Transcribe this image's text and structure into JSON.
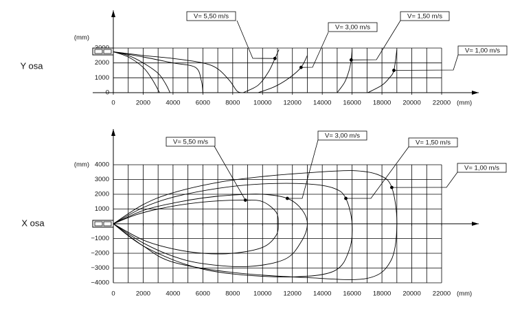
{
  "chart_data": [
    {
      "type": "line",
      "title": "Y osa",
      "x_label": "(mm)",
      "y_label": "(mm)",
      "xlim": [
        0,
        22000
      ],
      "xticks": [
        0,
        2000,
        4000,
        6000,
        8000,
        10000,
        12000,
        14000,
        16000,
        18000,
        20000,
        22000
      ],
      "xgrid": [
        0,
        1000,
        2000,
        3000,
        4000,
        5000,
        6000,
        7000,
        8000,
        9000,
        10000,
        11000,
        12000,
        13000,
        14000,
        15000,
        16000,
        17000,
        18000,
        19000,
        20000,
        21000,
        22000
      ],
      "ylim": [
        0,
        3000
      ],
      "yticks": [
        0,
        1000,
        2000,
        3000
      ],
      "grid": true,
      "series": [
        {
          "color": "#000000",
          "x": [
            0,
            1000,
            2000,
            2600,
            3100
          ],
          "values": [
            2750,
            2400,
            1700,
            900,
            0
          ]
        },
        {
          "color": "#000000",
          "x": [
            0,
            1000,
            2000,
            3000,
            3500,
            3800
          ],
          "values": [
            2750,
            2500,
            2000,
            1300,
            600,
            0
          ]
        },
        {
          "color": "#000000",
          "x": [
            0,
            2000,
            4000,
            5500,
            5900,
            6000
          ],
          "values": [
            2750,
            2400,
            2000,
            1700,
            800,
            0
          ]
        },
        {
          "color": "#000000",
          "x": [
            0,
            2000,
            4000,
            6000,
            7000,
            7800,
            8300,
            8700
          ],
          "values": [
            2750,
            2500,
            2300,
            2000,
            1600,
            800,
            100,
            0
          ]
        },
        {
          "color": "#000000",
          "x": [
            8700,
            9700,
            10400,
            10830,
            11100
          ],
          "values": [
            0,
            500,
            1400,
            2300,
            2900
          ]
        },
        {
          "color": "#000000",
          "x": [
            9700,
            10800,
            11800,
            12580,
            13000
          ],
          "values": [
            0,
            400,
            1000,
            1700,
            2500
          ]
        },
        {
          "color": "#000000",
          "x": [
            15000,
            15500,
            15800,
            15940,
            16000
          ],
          "values": [
            0,
            700,
            1500,
            2200,
            2900
          ]
        },
        {
          "color": "#000000",
          "x": [
            17050,
            18000,
            18500,
            18800,
            19000
          ],
          "values": [
            0,
            500,
            1000,
            1500,
            2900
          ]
        }
      ],
      "annotations": [
        {
          "text": "V= 5,50 m/s",
          "x": 10830,
          "y": 2300
        },
        {
          "text": "V= 3,00 m/s",
          "x": 12580,
          "y": 1700
        },
        {
          "text": "V= 1,50 m/s",
          "x": 15940,
          "y": 2200
        },
        {
          "text": "V= 1,00 m/s",
          "x": 18800,
          "y": 1500
        }
      ]
    },
    {
      "type": "line",
      "title": "X osa",
      "x_label": "(mm)",
      "y_label": "(mm)",
      "xlim": [
        0,
        22000
      ],
      "xticks": [
        0,
        2000,
        4000,
        6000,
        8000,
        10000,
        12000,
        14000,
        16000,
        18000,
        20000,
        22000
      ],
      "xgrid": [
        0,
        1000,
        2000,
        3000,
        4000,
        5000,
        6000,
        7000,
        8000,
        9000,
        10000,
        11000,
        12000,
        13000,
        14000,
        15000,
        16000,
        17000,
        18000,
        19000,
        20000,
        21000,
        22000
      ],
      "ylim": [
        -4000,
        4000
      ],
      "yticks": [
        {
          "value": -4000,
          "label": "−4000"
        },
        {
          "value": -3000,
          "label": "−3000"
        },
        {
          "value": -2000,
          "label": "−2000"
        },
        {
          "value": -1000,
          "label": "−1000"
        },
        0,
        1000,
        2000,
        3000,
        4000
      ],
      "grid": true,
      "series": [
        {
          "color": "#000000",
          "x": [
            0,
            1500,
            3000,
            5000,
            7000,
            8850,
            10000,
            10900,
            11050,
            10900,
            10000,
            8000,
            6000,
            4000,
            2000,
            0
          ],
          "values": [
            0,
            600,
            1000,
            1350,
            1550,
            1600,
            1500,
            800,
            0,
            -800,
            -1600,
            -2000,
            -2000,
            -1700,
            -1100,
            0
          ]
        },
        {
          "color": "#000000",
          "x": [
            0,
            2000,
            4000,
            6000,
            8000,
            10000,
            11660,
            12600,
            13000,
            12600,
            11500,
            9000,
            6000,
            4000,
            2000,
            0
          ],
          "values": [
            0,
            900,
            1400,
            1750,
            1950,
            2000,
            1720,
            1000,
            0,
            -1200,
            -2400,
            -2900,
            -2700,
            -2200,
            -1300,
            0
          ]
        },
        {
          "color": "#000000",
          "x": [
            0,
            2000,
            4000,
            7000,
            10000,
            13000,
            14800,
            15580,
            16000,
            15800,
            14800,
            12000,
            8000,
            5000,
            2000,
            0
          ],
          "values": [
            0,
            1100,
            1800,
            2400,
            2700,
            2700,
            2400,
            1720,
            0,
            -1800,
            -3200,
            -3600,
            -3400,
            -2800,
            -1500,
            0
          ]
        },
        {
          "color": "#000000",
          "x": [
            0,
            2000,
            4000,
            7000,
            10000,
            13000,
            16000,
            17800,
            18660,
            19000,
            18600,
            17000,
            13000,
            8000,
            4000,
            2000,
            0
          ],
          "values": [
            0,
            1300,
            2100,
            2800,
            3200,
            3450,
            3600,
            3300,
            2460,
            0,
            -2500,
            -3700,
            -3650,
            -3300,
            -2600,
            -1500,
            0
          ]
        }
      ],
      "annotations": [
        {
          "text": "V= 5,50 m/s",
          "x": 8850,
          "y": 1600
        },
        {
          "text": "V= 3,00 m/s",
          "x": 11660,
          "y": 1720
        },
        {
          "text": "V= 1,50 m/s",
          "x": 15580,
          "y": 1720
        },
        {
          "text": "V= 1,00 m/s",
          "x": 18660,
          "y": 2460
        }
      ]
    }
  ]
}
